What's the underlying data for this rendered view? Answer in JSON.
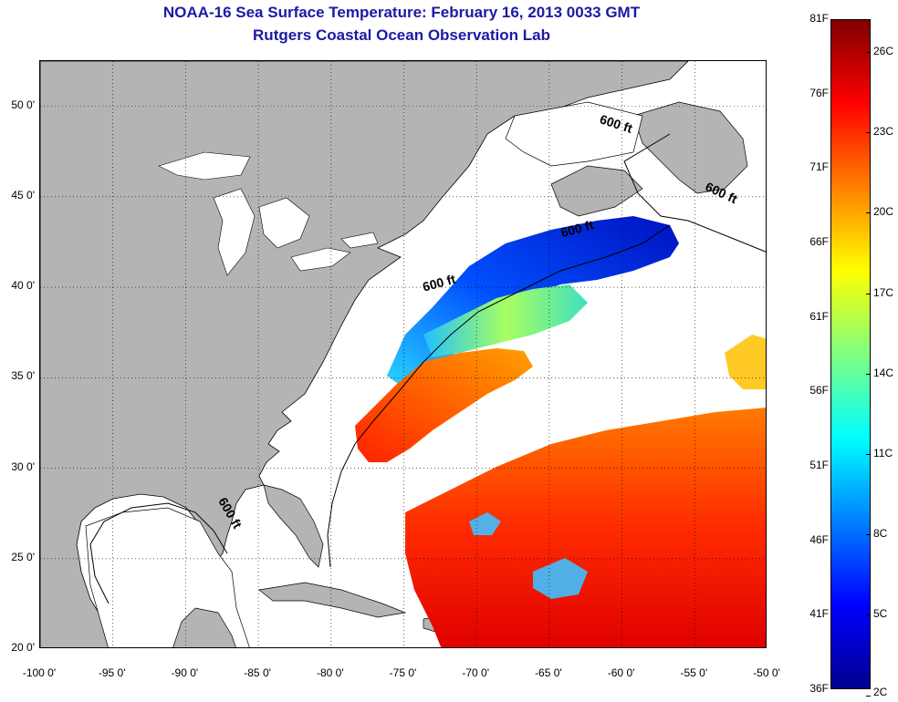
{
  "title_line1": "NOAA-16 Sea Surface Temperature:  February 16, 2013 0033 GMT",
  "title_line2": "Rutgers Coastal Ocean Observation Lab",
  "map": {
    "lon_range": [
      -100,
      -50
    ],
    "lat_range": [
      20,
      52.5
    ],
    "y_ticks": [
      {
        "lat": 50,
        "label": "50 0'"
      },
      {
        "lat": 45,
        "label": "45 0'"
      },
      {
        "lat": 40,
        "label": "40 0'"
      },
      {
        "lat": 35,
        "label": "35 0'"
      },
      {
        "lat": 30,
        "label": "30 0'"
      },
      {
        "lat": 25,
        "label": "25 0'"
      },
      {
        "lat": 20,
        "label": "20 0'"
      }
    ],
    "x_ticks": [
      {
        "lon": -100,
        "label": "-100 0'"
      },
      {
        "lon": -95,
        "label": "-95 0'"
      },
      {
        "lon": -90,
        "label": "-90 0'"
      },
      {
        "lon": -85,
        "label": "-85 0'"
      },
      {
        "lon": -80,
        "label": "-80 0'"
      },
      {
        "lon": -75,
        "label": "-75 0'"
      },
      {
        "lon": -70,
        "label": "-70 0'"
      },
      {
        "lon": -65,
        "label": "-65 0'"
      },
      {
        "lon": -60,
        "label": "-60 0'"
      },
      {
        "lon": -55,
        "label": "-55 0'"
      },
      {
        "lon": -50,
        "label": "-50 0'"
      }
    ],
    "depth_labels": [
      {
        "text": "600 ft",
        "lon": -60.5,
        "lat": 48.8,
        "rotate": 18
      },
      {
        "text": "600 ft",
        "lon": -53.3,
        "lat": 45.0,
        "rotate": 25
      },
      {
        "text": "600 ft",
        "lon": -63.0,
        "lat": 43.0,
        "rotate": -15
      },
      {
        "text": "600 ft",
        "lon": -72.5,
        "lat": 40.0,
        "rotate": -15
      },
      {
        "text": "600 ft",
        "lon": -87.2,
        "lat": 27.4,
        "rotate": 60
      }
    ],
    "colors": {
      "land": "#b4b4b4",
      "water": "#ffffff",
      "coast": "#000000"
    }
  },
  "colorbar": {
    "f_labels": [
      "81F",
      "76F",
      "71F",
      "66F",
      "61F",
      "56F",
      "51F",
      "46F",
      "41F",
      "36F"
    ],
    "c_labels": [
      "26C",
      "23C",
      "20C",
      "17C",
      "14C",
      "11C",
      "8C",
      "5C",
      "2C"
    ],
    "f_range": [
      36,
      81
    ],
    "c_values": [
      26,
      23,
      20,
      17,
      14,
      11,
      8,
      5,
      2
    ]
  }
}
